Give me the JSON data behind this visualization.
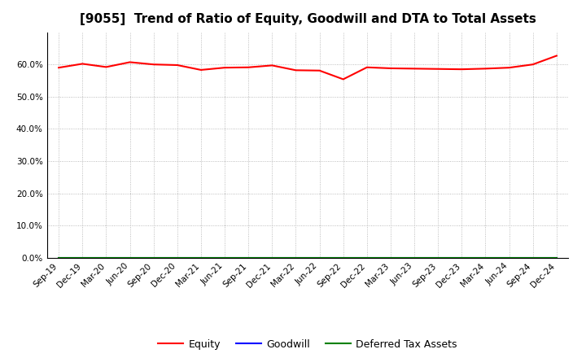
{
  "title": "[9055]  Trend of Ratio of Equity, Goodwill and DTA to Total Assets",
  "x_labels": [
    "Sep-19",
    "Dec-19",
    "Mar-20",
    "Jun-20",
    "Sep-20",
    "Dec-20",
    "Mar-21",
    "Jun-21",
    "Sep-21",
    "Dec-21",
    "Mar-22",
    "Jun-22",
    "Sep-22",
    "Dec-22",
    "Mar-23",
    "Jun-23",
    "Sep-23",
    "Dec-23",
    "Mar-24",
    "Jun-24",
    "Sep-24",
    "Dec-24"
  ],
  "equity": [
    0.59,
    0.602,
    0.592,
    0.607,
    0.6,
    0.598,
    0.583,
    0.59,
    0.591,
    0.597,
    0.582,
    0.581,
    0.554,
    0.591,
    0.588,
    0.587,
    0.586,
    0.585,
    0.587,
    0.59,
    0.6,
    0.627
  ],
  "goodwill": [
    0.0,
    0.0,
    0.0,
    0.0,
    0.0,
    0.0,
    0.0,
    0.0,
    0.0,
    0.0,
    0.0,
    0.0,
    0.0,
    0.0,
    0.0,
    0.0,
    0.0,
    0.0,
    0.0,
    0.0,
    0.0,
    0.0
  ],
  "dta": [
    0.0,
    0.0,
    0.0,
    0.0,
    0.0,
    0.0,
    0.0,
    0.0,
    0.0,
    0.0,
    0.0,
    0.0,
    0.0,
    0.0,
    0.0,
    0.0,
    0.0,
    0.0,
    0.0,
    0.0,
    0.0,
    0.0
  ],
  "equity_color": "#FF0000",
  "goodwill_color": "#0000FF",
  "dta_color": "#008000",
  "bg_color": "#FFFFFF",
  "plot_bg_color": "#FFFFFF",
  "grid_color": "#AAAAAA",
  "ylim": [
    0.0,
    0.7
  ],
  "yticks": [
    0.0,
    0.1,
    0.2,
    0.3,
    0.4,
    0.5,
    0.6
  ],
  "title_fontsize": 11,
  "tick_fontsize": 7.5,
  "legend_labels": [
    "Equity",
    "Goodwill",
    "Deferred Tax Assets"
  ]
}
